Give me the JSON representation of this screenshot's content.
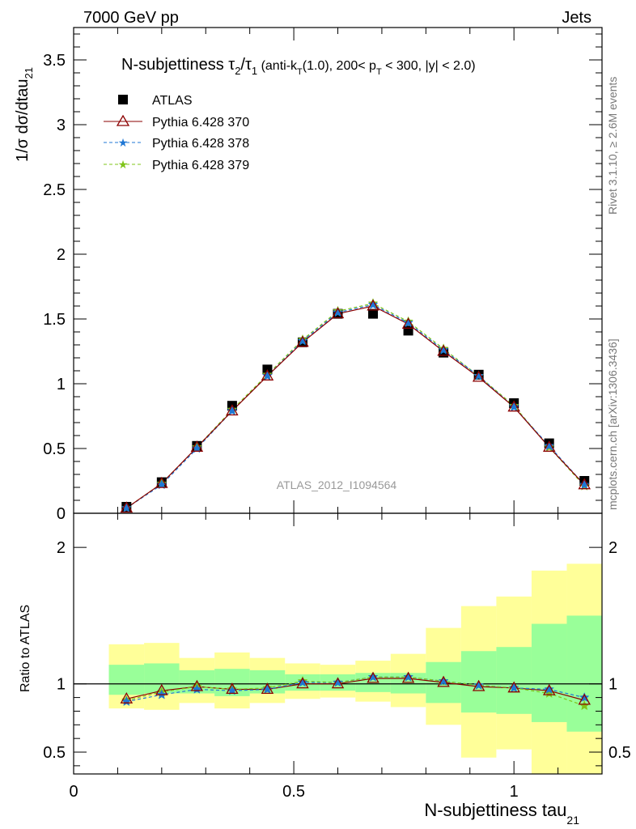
{
  "header": {
    "left": "7000 GeV pp",
    "right": "Jets"
  },
  "side": {
    "rivet": "Rivet 3.1.10, ≥ 2.6M events",
    "mcplots": "mcplots.cern.ch [arXiv:1306.3436]"
  },
  "chart_data": [
    {
      "type": "scatter",
      "title_main": "N-subjettiness τ",
      "title_sub2": "2",
      "title_div": "/τ",
      "title_sub1": "1",
      "title_cuts_a": " (anti-k",
      "title_cuts_sub": "T",
      "title_cuts_b": "(1.0), 200< p",
      "title_cuts_sub2": "T",
      "title_cuts_c": " < 300, |y| < 2.0)",
      "ylabel": "1/σ dσ/dtau",
      "ylabel_sub": "21",
      "watermark": "ATLAS_2012_I1094564",
      "xlim": [
        0,
        1.2
      ],
      "ylim": [
        0,
        3.75
      ],
      "yticks": [
        "0",
        "0.5",
        "1",
        "1.5",
        "2",
        "2.5",
        "3",
        "3.5"
      ],
      "ytick_values": [
        0,
        0.5,
        1,
        1.5,
        2,
        2.5,
        3,
        3.5
      ],
      "x": [
        0.12,
        0.2,
        0.28,
        0.36,
        0.44,
        0.52,
        0.6,
        0.68,
        0.76,
        0.84,
        0.92,
        1.0,
        1.08,
        1.16
      ],
      "series": [
        {
          "name": "ATLAS",
          "color": "#000000",
          "values": [
            0.05,
            0.24,
            0.52,
            0.83,
            1.11,
            1.32,
            1.54,
            1.54,
            1.41,
            1.24,
            1.07,
            0.85,
            0.54,
            0.25
          ]
        },
        {
          "name": "Pythia 6.428 370",
          "color": "#8b0000",
          "values": [
            0.04,
            0.23,
            0.51,
            0.79,
            1.06,
            1.32,
            1.54,
            1.6,
            1.46,
            1.25,
            1.05,
            0.82,
            0.51,
            0.22
          ]
        },
        {
          "name": "Pythia 6.428 378",
          "color": "#1f77d4",
          "values": [
            0.04,
            0.22,
            0.5,
            0.79,
            1.06,
            1.33,
            1.55,
            1.61,
            1.47,
            1.26,
            1.06,
            0.82,
            0.52,
            0.22
          ]
        },
        {
          "name": "Pythia 6.428 379",
          "color": "#7fc41a",
          "values": [
            0.04,
            0.23,
            0.51,
            0.8,
            1.07,
            1.34,
            1.56,
            1.62,
            1.48,
            1.27,
            1.06,
            0.83,
            0.51,
            0.21
          ]
        }
      ]
    },
    {
      "type": "scatter",
      "ylabel": "Ratio to ATLAS",
      "xlabel": "N-subjettiness tau",
      "xlabel_sub": "21",
      "xlim": [
        0,
        1.2
      ],
      "ylim": [
        0.34,
        2.25
      ],
      "xticks": [
        "0",
        "0.5",
        "1"
      ],
      "xtick_values": [
        0,
        0.5,
        1
      ],
      "yticks": [
        "0.5",
        "1",
        "2"
      ],
      "ytick_values": [
        0.5,
        1,
        2
      ],
      "bins": [
        0.08,
        0.16,
        0.24,
        0.32,
        0.4,
        0.48,
        0.56,
        0.64,
        0.72,
        0.8,
        0.88,
        0.96,
        1.04,
        1.12,
        1.2
      ],
      "band_inner": [
        [
          0.92,
          1.14
        ],
        [
          0.93,
          1.15
        ],
        [
          0.93,
          1.1
        ],
        [
          0.91,
          1.11
        ],
        [
          0.93,
          1.1
        ],
        [
          0.95,
          1.07
        ],
        [
          0.95,
          1.07
        ],
        [
          0.94,
          1.08
        ],
        [
          0.93,
          1.08
        ],
        [
          0.86,
          1.16
        ],
        [
          0.79,
          1.24
        ],
        [
          0.78,
          1.27
        ],
        [
          0.72,
          1.44
        ],
        [
          0.65,
          1.5
        ]
      ],
      "band_outer": [
        [
          0.82,
          1.29
        ],
        [
          0.81,
          1.3
        ],
        [
          0.86,
          1.19
        ],
        [
          0.82,
          1.23
        ],
        [
          0.86,
          1.19
        ],
        [
          0.89,
          1.15
        ],
        [
          0.9,
          1.14
        ],
        [
          0.87,
          1.17
        ],
        [
          0.83,
          1.22
        ],
        [
          0.7,
          1.41
        ],
        [
          0.46,
          1.57
        ],
        [
          0.52,
          1.64
        ],
        [
          0.34,
          1.83
        ],
        [
          0.34,
          1.88
        ]
      ],
      "series": [
        {
          "name": "Pythia 6.428 370",
          "color": "#8b0000",
          "values": [
            0.89,
            0.95,
            0.98,
            0.96,
            0.96,
            1.0,
            1.0,
            1.04,
            1.04,
            1.01,
            0.98,
            0.97,
            0.95,
            0.88
          ]
        },
        {
          "name": "Pythia 6.428 378",
          "color": "#1f77d4",
          "values": [
            0.87,
            0.92,
            0.96,
            0.95,
            0.96,
            1.01,
            1.01,
            1.05,
            1.05,
            1.02,
            0.99,
            0.97,
            0.96,
            0.9
          ]
        },
        {
          "name": "Pythia 6.428 379",
          "color": "#7fc41a",
          "values": [
            0.88,
            0.94,
            0.98,
            0.96,
            0.97,
            1.02,
            1.01,
            1.05,
            1.05,
            1.02,
            0.99,
            0.97,
            0.93,
            0.84
          ]
        }
      ]
    }
  ],
  "colors": {
    "band_inner": "#99ff99",
    "band_outer": "#ffff99"
  }
}
